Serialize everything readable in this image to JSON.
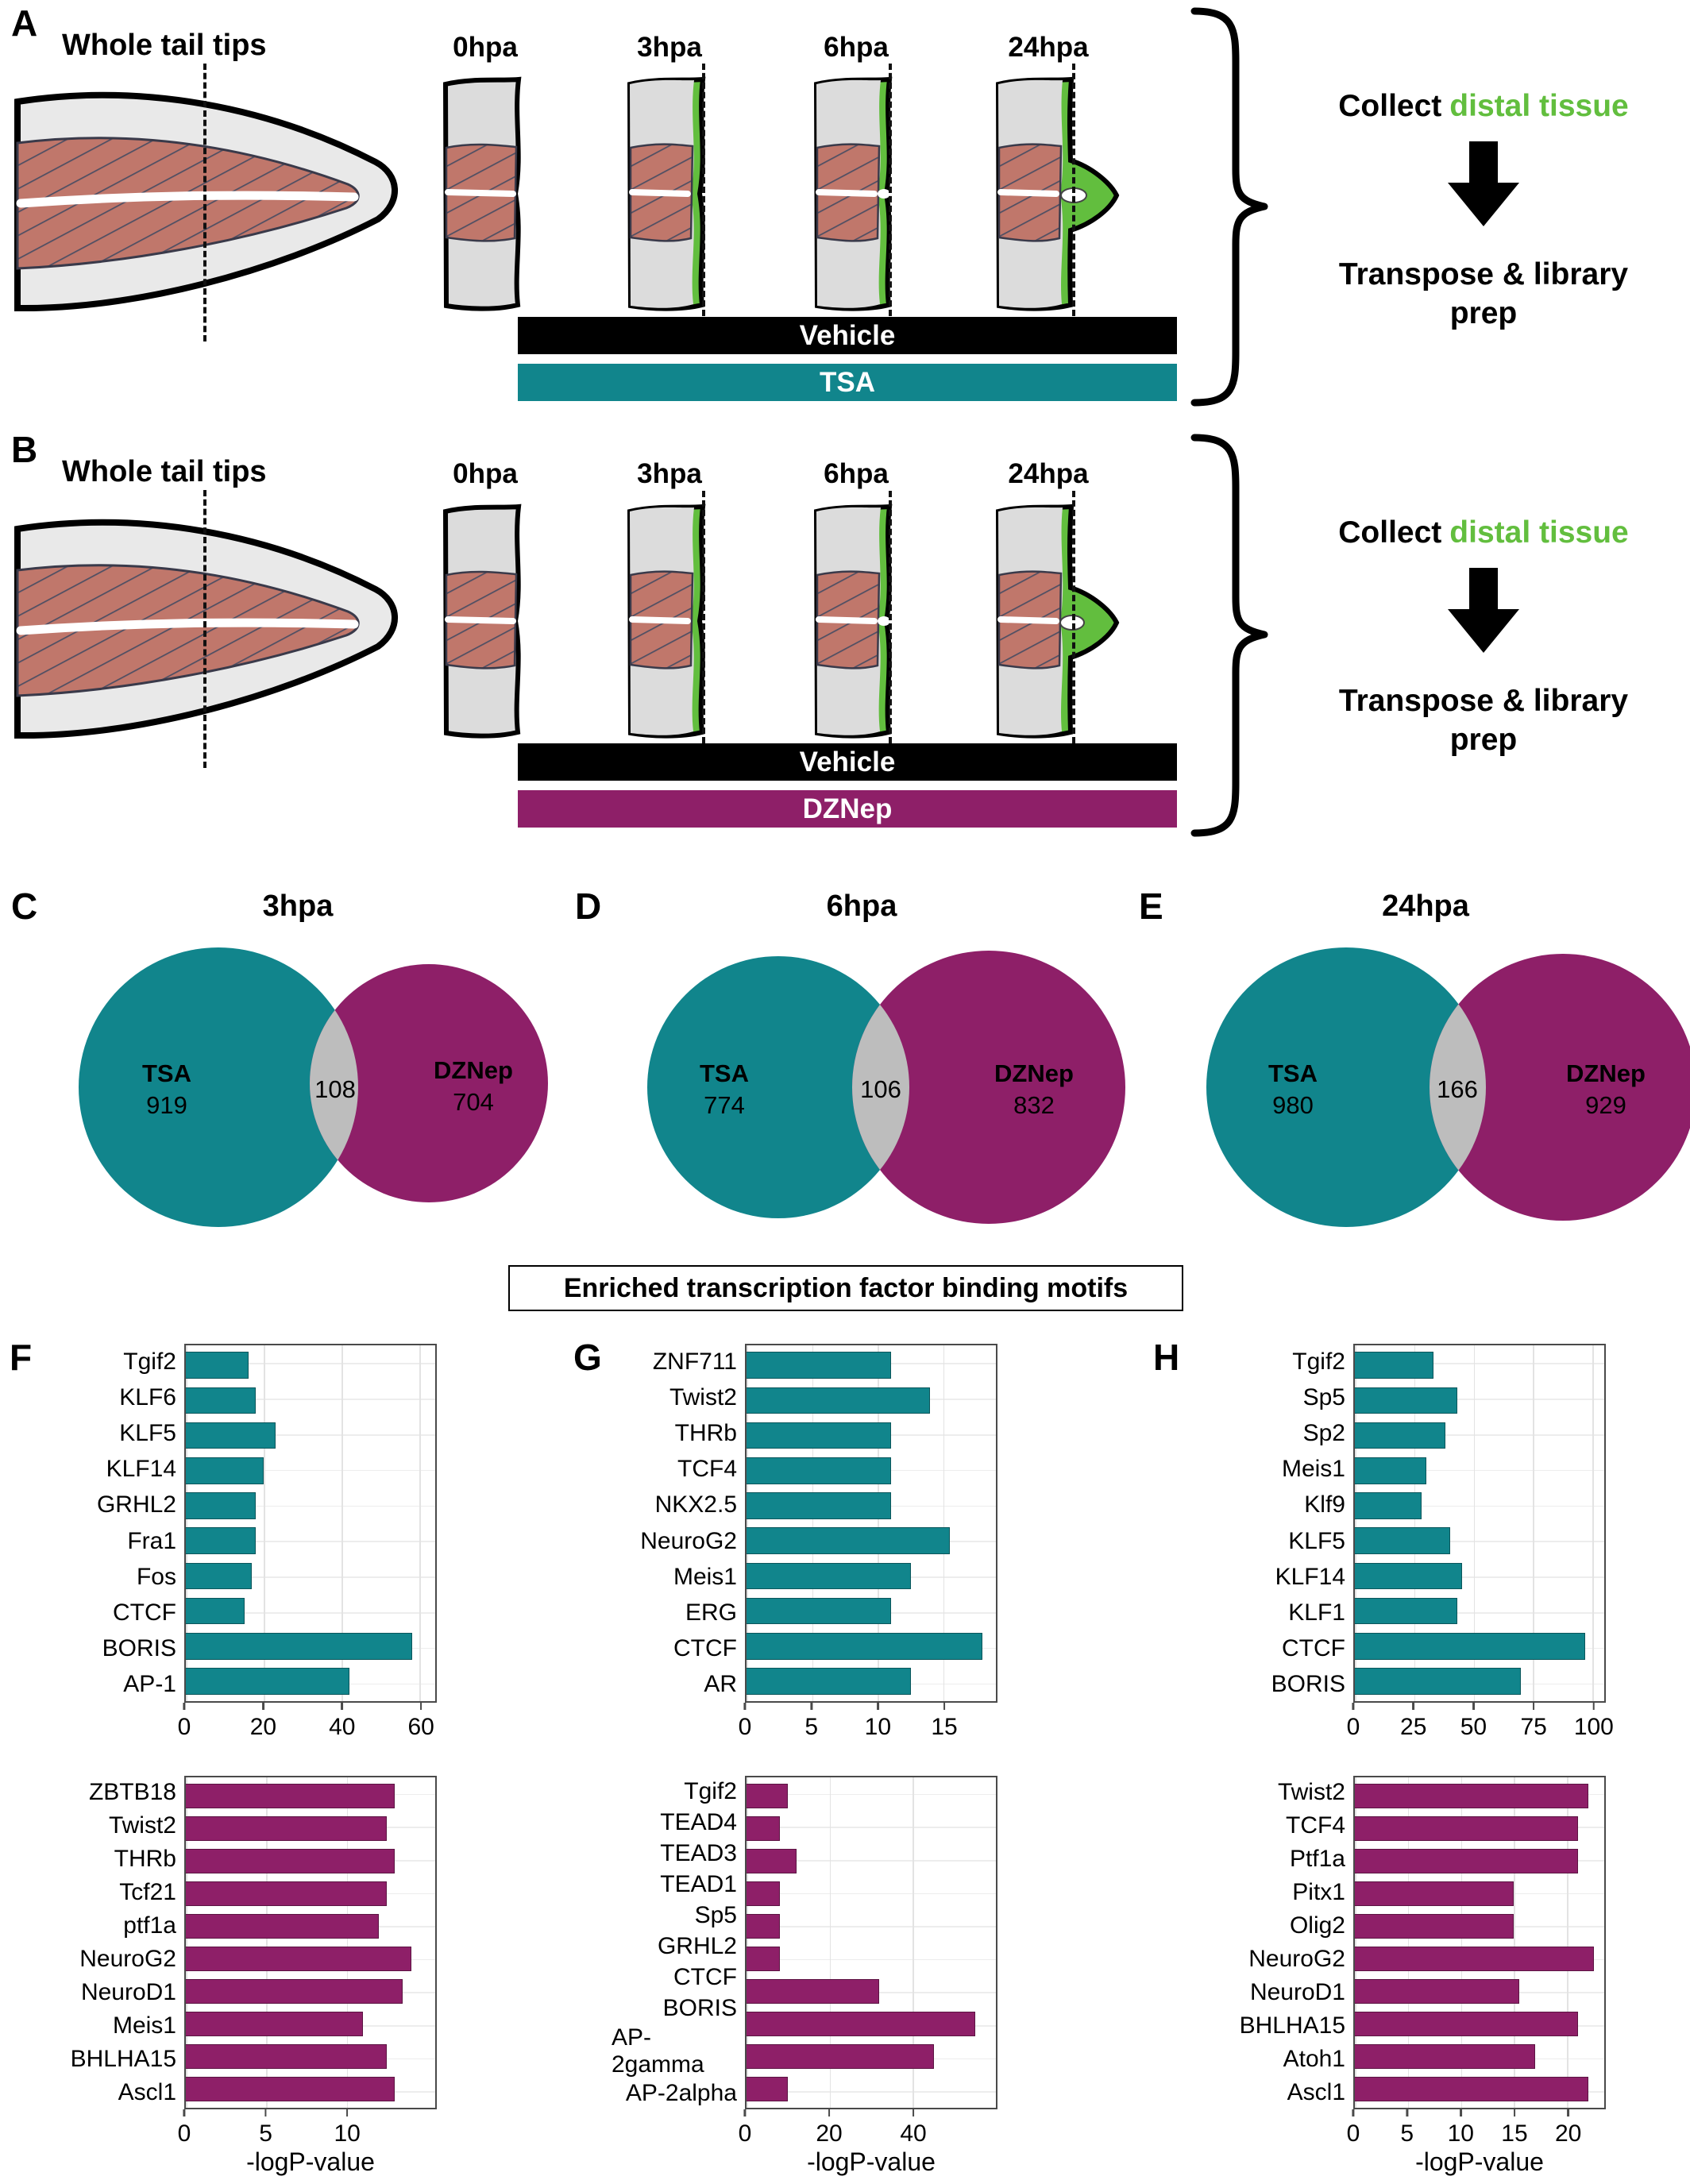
{
  "colors": {
    "teal": "#11858C",
    "magenta": "#8E1F68",
    "green": "#62BE3E",
    "overlap": "#BDBDBD"
  },
  "panels_ab": [
    {
      "label": "A",
      "tail_title": "Whole tail tips",
      "timepoints": [
        "0hpa",
        "3hpa",
        "6hpa",
        "24hpa"
      ],
      "vehicle": "Vehicle",
      "treatment": "TSA",
      "collect_prefix": "Collect",
      "collect_highlight": "distal tissue",
      "library_text": "Transpose & library prep"
    },
    {
      "label": "B",
      "tail_title": "Whole tail tips",
      "timepoints": [
        "0hpa",
        "3hpa",
        "6hpa",
        "24hpa"
      ],
      "vehicle": "Vehicle",
      "treatment": "DZNep",
      "collect_prefix": "Collect",
      "collect_highlight": "distal tissue",
      "library_text": "Transpose & library prep"
    }
  ],
  "venn_panels": [
    {
      "label": "C",
      "title": "3hpa",
      "left_name": "TSA",
      "left_count": "919",
      "overlap_count": "108",
      "right_name": "DZNep",
      "right_count": "704"
    },
    {
      "label": "D",
      "title": "6hpa",
      "left_name": "TSA",
      "left_count": "774",
      "overlap_count": "106",
      "right_name": "DZNep",
      "right_count": "832"
    },
    {
      "label": "E",
      "title": "24hpa",
      "left_name": "TSA",
      "left_count": "980",
      "overlap_count": "166",
      "right_name": "DZNep",
      "right_count": "929"
    }
  ],
  "motif_header": "Enriched transcription factor binding motifs",
  "bar_panel_labels": [
    "F",
    "G",
    "H"
  ],
  "chart_data": [
    {
      "id": "F-top",
      "panel": "F",
      "type": "bar",
      "orientation": "horizontal",
      "series_name": "TSA 3hpa",
      "color_key": "teal",
      "categories": [
        "Tgif2",
        "KLF6",
        "KLF5",
        "KLF14",
        "GRHL2",
        "Fra1",
        "Fos",
        "CTCF",
        "BORIS",
        "AP-1"
      ],
      "values": [
        16,
        18,
        23,
        20,
        18,
        18,
        17,
        15,
        58,
        42
      ],
      "xticks": [
        0,
        20,
        40,
        60
      ],
      "xlim": [
        0,
        64
      ],
      "xlabel": "",
      "ylabel": "",
      "grid": true,
      "legend": false
    },
    {
      "id": "F-bottom",
      "panel": "F",
      "type": "bar",
      "orientation": "horizontal",
      "series_name": "DZNep 3hpa",
      "color_key": "magenta",
      "categories": [
        "ZBTB18",
        "Twist2",
        "THRb",
        "Tcf21",
        "ptf1a",
        "NeuroG2",
        "NeuroD1",
        "Meis1",
        "BHLHA15",
        "Ascl1"
      ],
      "values": [
        13,
        12.5,
        13,
        12.5,
        12,
        14,
        13.5,
        11,
        12.5,
        13
      ],
      "xticks": [
        0,
        5,
        10
      ],
      "xlim": [
        0,
        15.5
      ],
      "xlabel": "-logP-value",
      "ylabel": "",
      "grid": true,
      "legend": false
    },
    {
      "id": "G-top",
      "panel": "G",
      "type": "bar",
      "orientation": "horizontal",
      "series_name": "TSA 6hpa",
      "color_key": "teal",
      "categories": [
        "ZNF711",
        "Twist2",
        "THRb",
        "TCF4",
        "NKX2.5",
        "NeuroG2",
        "Meis1",
        "ERG",
        "CTCF",
        "AR"
      ],
      "values": [
        11,
        14,
        11,
        11,
        11,
        15.5,
        12.5,
        11,
        18,
        12.5
      ],
      "xticks": [
        0,
        5,
        10,
        15
      ],
      "xlim": [
        0,
        19
      ],
      "xlabel": "",
      "ylabel": "",
      "grid": true,
      "legend": false
    },
    {
      "id": "G-bottom",
      "panel": "G",
      "type": "bar",
      "orientation": "horizontal",
      "series_name": "DZNep 6hpa",
      "color_key": "magenta",
      "categories": [
        "Tgif2",
        "TEAD4",
        "TEAD3",
        "TEAD1",
        "Sp5",
        "GRHL2",
        "CTCF",
        "BORIS",
        "AP-2gamma",
        "AP-2alpha"
      ],
      "values": [
        10,
        8,
        12,
        8,
        8,
        8,
        32,
        55,
        45,
        10
      ],
      "xticks": [
        0,
        20,
        40
      ],
      "xlim": [
        0,
        60
      ],
      "xlabel": "-logP-value",
      "ylabel": "",
      "grid": true,
      "legend": false
    },
    {
      "id": "H-top",
      "panel": "H",
      "type": "bar",
      "orientation": "horizontal",
      "series_name": "TSA 24hpa",
      "color_key": "teal",
      "categories": [
        "Tgif2",
        "Sp5",
        "Sp2",
        "Meis1",
        "Klf9",
        "KLF5",
        "KLF14",
        "KLF1",
        "CTCF",
        "BORIS"
      ],
      "values": [
        33,
        43,
        38,
        30,
        28,
        40,
        45,
        43,
        97,
        70
      ],
      "xticks": [
        0,
        25,
        50,
        75,
        100
      ],
      "xlim": [
        0,
        105
      ],
      "xlabel": "",
      "ylabel": "",
      "grid": true,
      "legend": false
    },
    {
      "id": "H-bottom",
      "panel": "H",
      "type": "bar",
      "orientation": "horizontal",
      "series_name": "DZNep 24hpa",
      "color_key": "magenta",
      "categories": [
        "Twist2",
        "TCF4",
        "Ptf1a",
        "Pitx1",
        "Olig2",
        "NeuroG2",
        "NeuroD1",
        "BHLHA15",
        "Atoh1",
        "Ascl1"
      ],
      "values": [
        22,
        21,
        21,
        15,
        15,
        22.5,
        15.5,
        21,
        17,
        22
      ],
      "xticks": [
        0,
        5,
        10,
        15,
        20
      ],
      "xlim": [
        0,
        23.5
      ],
      "xlabel": "-logP-value",
      "ylabel": "",
      "grid": true,
      "legend": false
    }
  ]
}
